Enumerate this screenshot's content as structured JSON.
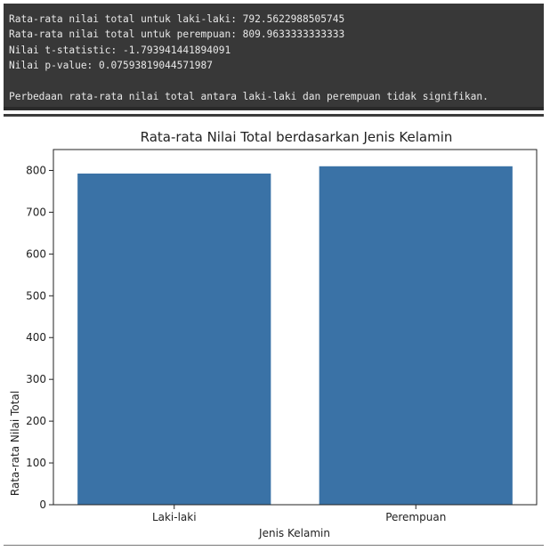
{
  "console": {
    "lines": [
      "Rata-rata nilai total untuk laki-laki: 792.5622988505745",
      "Rata-rata nilai total untuk perempuan: 809.9633333333333",
      "Nilai t-statistic: -1.793941441894091",
      "Nilai p-value: 0.07593819044571987",
      "",
      "Perbedaan rata-rata nilai total antara laki-laki dan perempuan tidak signifikan."
    ]
  },
  "chart_data": {
    "type": "bar",
    "title": "Rata-rata Nilai Total berdasarkan Jenis Kelamin",
    "xlabel": "Jenis Kelamin",
    "ylabel": "Rata-rata Nilai Total",
    "categories": [
      "Laki-laki",
      "Perempuan"
    ],
    "values": [
      792.5622988505745,
      809.9633333333333
    ],
    "ylim": [
      0,
      850
    ],
    "yticks": [
      0,
      100,
      200,
      300,
      400,
      500,
      600,
      700,
      800
    ],
    "grid": false,
    "bar_color": "#3a72a6"
  }
}
